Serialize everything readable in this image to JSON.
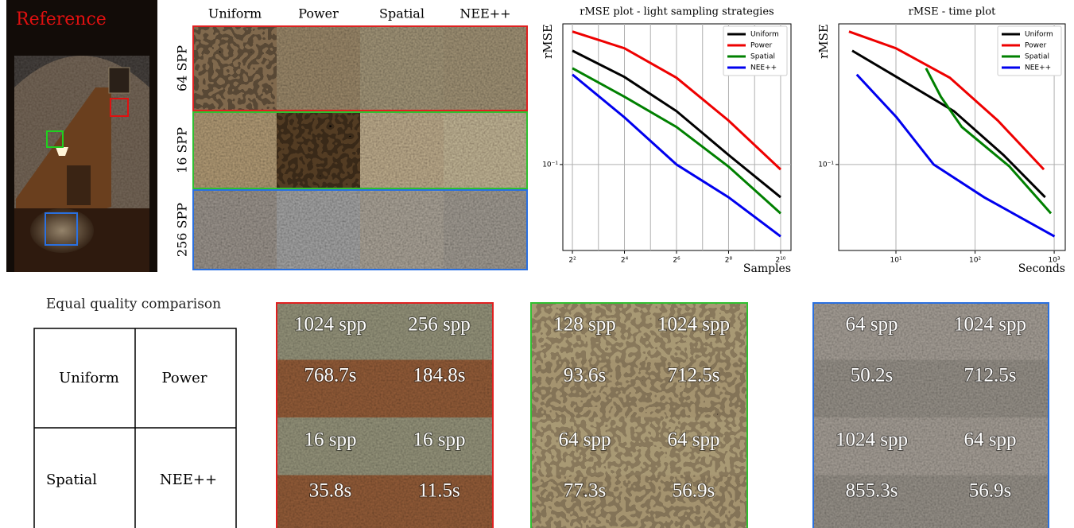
{
  "reference": {
    "label": "Reference"
  },
  "grid": {
    "columns": [
      "Uniform",
      "Power",
      "Spatial",
      "NEE++"
    ],
    "rows": [
      "64 SPP",
      "16 SPP",
      "256 SPP"
    ]
  },
  "chart_data": [
    {
      "type": "line",
      "title": "rMSE plot - light sampling strategies",
      "y_label": "rMSE",
      "x_label": "Samples",
      "xscale": "log",
      "yscale": "log",
      "grid": true,
      "legend": "upper right",
      "x": [
        4,
        16,
        64,
        256,
        1024
      ],
      "xlim": [
        3.1,
        1350
      ],
      "ylim": [
        0.0285,
        0.78
      ],
      "xticks": [
        {
          "value": 4,
          "label": "2²"
        },
        {
          "value": 16,
          "label": "2⁴"
        },
        {
          "value": 64,
          "label": "2⁶"
        },
        {
          "value": 256,
          "label": "2⁸"
        },
        {
          "value": 1024,
          "label": "2¹⁰"
        }
      ],
      "xminor": [
        8,
        32,
        128,
        512
      ],
      "yticks": [
        {
          "value": 0.1,
          "label": "10⁻¹"
        }
      ],
      "series": [
        {
          "name": "Uniform",
          "color": "#000000",
          "values": [
            0.527,
            0.359,
            0.218,
            0.115,
            0.062
          ]
        },
        {
          "name": "Power",
          "color": "#ee0000",
          "values": [
            0.697,
            0.546,
            0.355,
            0.19,
            0.093
          ]
        },
        {
          "name": "Spatial",
          "color": "#008000",
          "values": [
            0.408,
            0.269,
            0.173,
            0.097,
            0.049
          ]
        },
        {
          "name": "NEE++",
          "color": "#0000ee",
          "values": [
            0.372,
            0.199,
            0.1,
            0.062,
            0.035
          ]
        }
      ]
    },
    {
      "type": "line",
      "title": "rMSE - time plot",
      "y_label": "rMSE",
      "x_label": "Seconds",
      "xscale": "log",
      "yscale": "log",
      "grid": true,
      "legend": "upper right",
      "xlim": [
        1.89,
        1380
      ],
      "ylim": [
        0.0285,
        0.78
      ],
      "xticks": [
        {
          "value": 10,
          "label": "10¹"
        },
        {
          "value": 100,
          "label": "10²"
        },
        {
          "value": 1000,
          "label": "10³"
        }
      ],
      "yticks": [
        {
          "value": 0.1,
          "label": "10⁻¹"
        }
      ],
      "series": [
        {
          "name": "Uniform",
          "color": "#000000",
          "x": [
            2.8,
            10.2,
            54,
            228,
            769
          ],
          "values": [
            0.527,
            0.359,
            0.218,
            0.115,
            0.062
          ]
        },
        {
          "name": "Power",
          "color": "#ee0000",
          "x": [
            2.55,
            10,
            48,
            194,
            740
          ],
          "values": [
            0.697,
            0.546,
            0.355,
            0.19,
            0.093
          ]
        },
        {
          "name": "Spatial",
          "color": "#008000",
          "x": [
            24,
            37,
            68,
            273,
            910
          ],
          "values": [
            0.408,
            0.269,
            0.173,
            0.097,
            0.049
          ]
        },
        {
          "name": "NEE++",
          "color": "#0000ee",
          "x": [
            3.2,
            10.2,
            30,
            130,
            1010
          ],
          "values": [
            0.372,
            0.199,
            0.1,
            0.062,
            0.035
          ]
        }
      ]
    }
  ],
  "equal_quality": {
    "title": "Equal quality comparison",
    "cells": [
      [
        "Uniform",
        "Power"
      ],
      [
        "Spatial",
        "NEE++"
      ]
    ]
  },
  "crops": [
    {
      "cells": [
        {
          "spp": "1024 spp",
          "time": "768.7s"
        },
        {
          "spp": "256 spp",
          "time": "184.8s"
        },
        {
          "spp": "16 spp",
          "time": "35.8s"
        },
        {
          "spp": "16 spp",
          "time": "11.5s"
        }
      ]
    },
    {
      "cells": [
        {
          "spp": "128 spp",
          "time": "93.6s"
        },
        {
          "spp": "1024 spp",
          "time": "712.5s"
        },
        {
          "spp": "64 spp",
          "time": "77.3s"
        },
        {
          "spp": "64 spp",
          "time": "56.9s"
        }
      ]
    },
    {
      "cells": [
        {
          "spp": "64 spp",
          "time": "50.2s"
        },
        {
          "spp": "1024 spp",
          "time": "712.5s"
        },
        {
          "spp": "1024 spp",
          "time": "855.3s"
        },
        {
          "spp": "64 spp",
          "time": "56.9s"
        }
      ]
    }
  ]
}
